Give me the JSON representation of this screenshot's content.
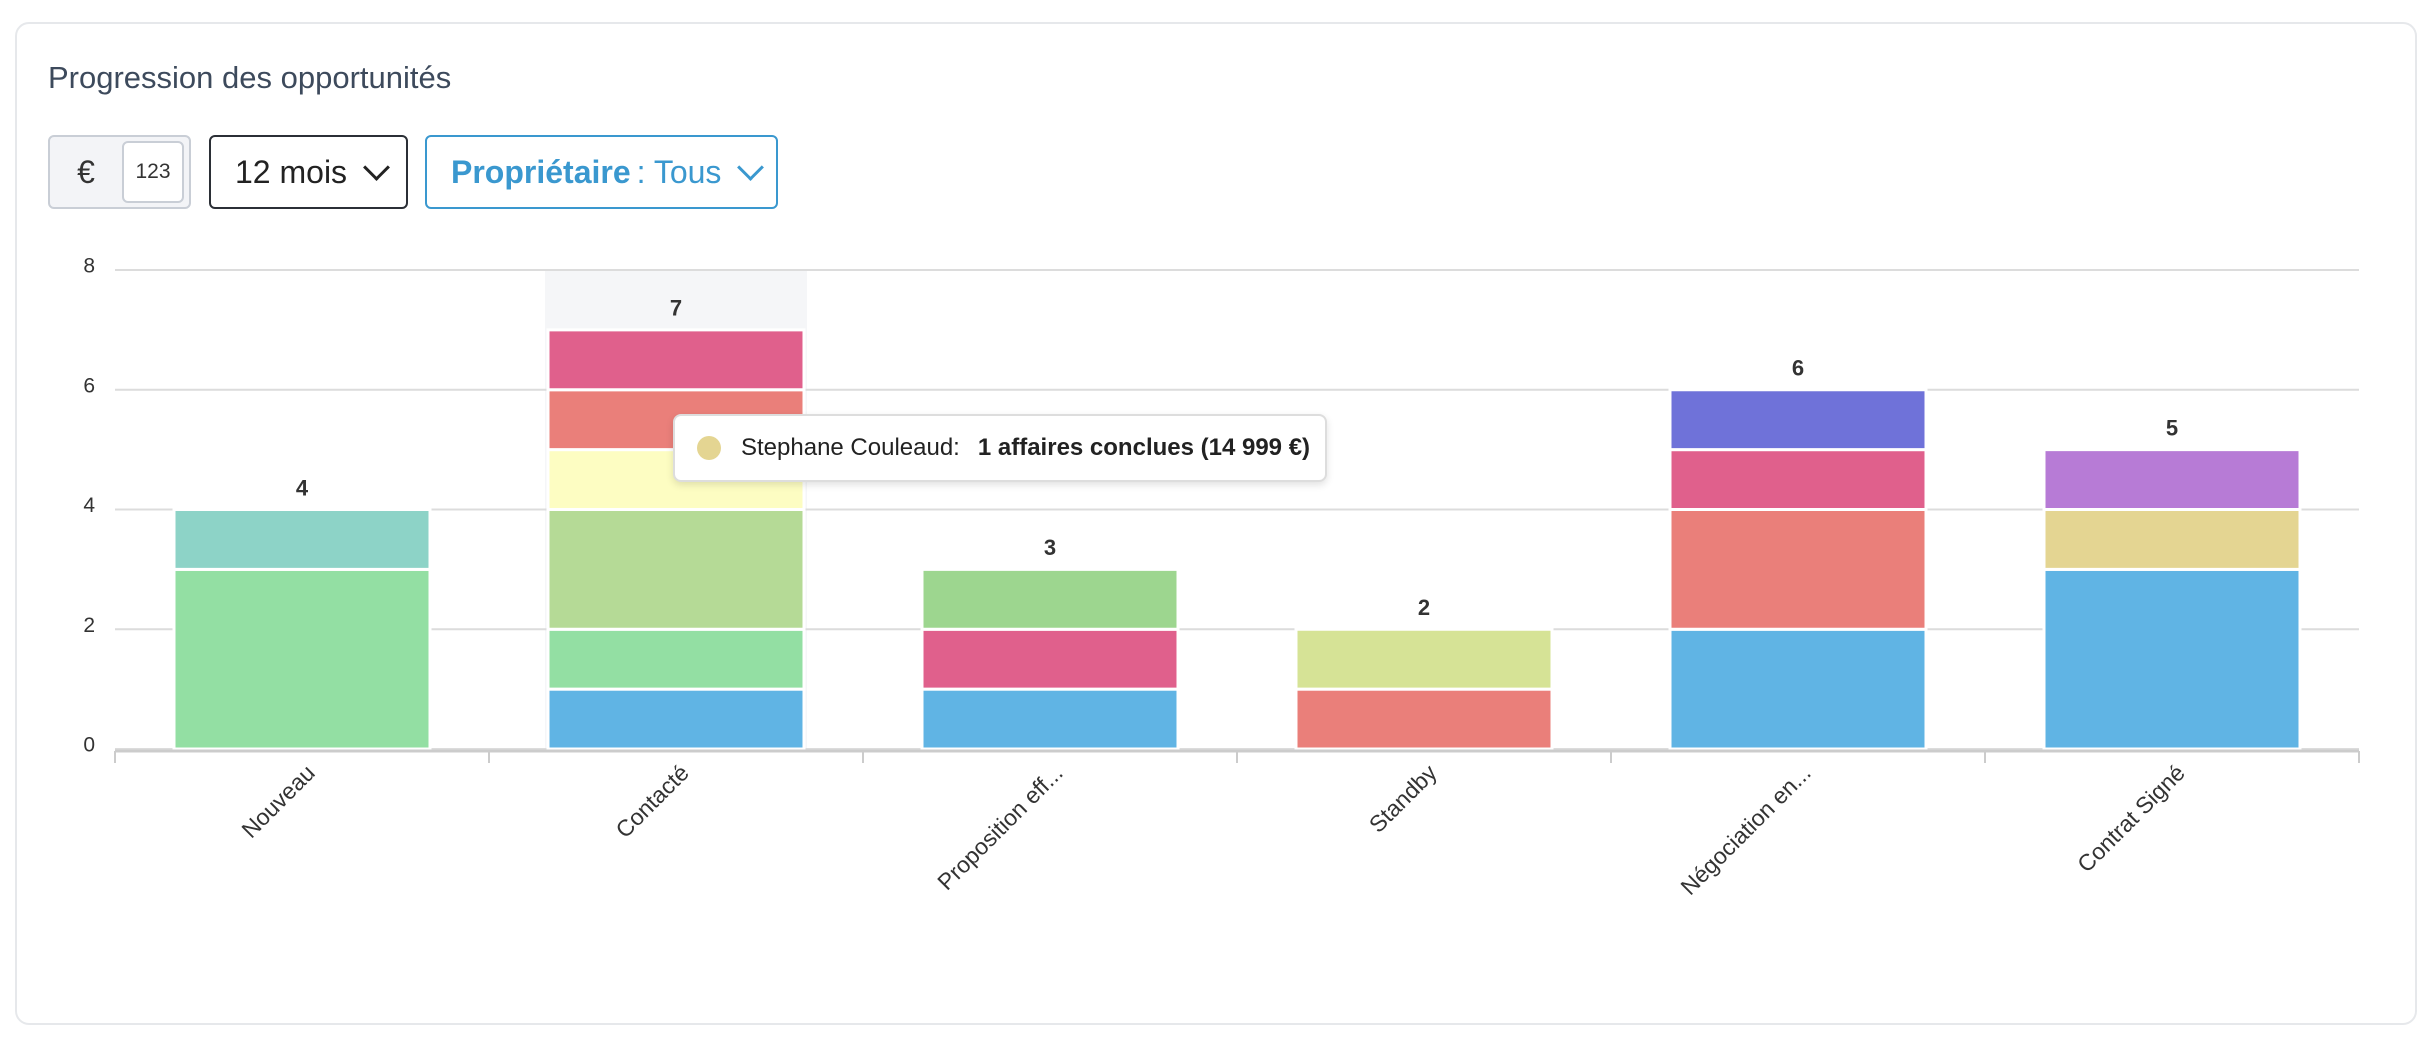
{
  "header": {
    "title": "Progression des opportunités"
  },
  "controls": {
    "currency": "€",
    "number": "123",
    "period": "12 mois",
    "owner_label": "Propriétaire",
    "owner_value": ": Tous"
  },
  "chart_data": {
    "type": "stacked-bar",
    "categories": [
      "Nouveau",
      "Contacté",
      "Proposition eff...",
      "Standby",
      "Négociation en...",
      "Contrat Signé"
    ],
    "series": [
      {
        "color": "#60b4e4",
        "values": [
          null,
          1,
          1,
          null,
          2,
          3
        ]
      },
      {
        "color": "#93dfa3",
        "values": [
          3,
          1,
          null,
          null,
          null,
          null
        ]
      },
      {
        "color": "#8dd3c7",
        "values": [
          1,
          null,
          null,
          null,
          null,
          null
        ]
      },
      {
        "color": "#b5da96",
        "values": [
          null,
          2,
          null,
          null,
          null,
          null
        ]
      },
      {
        "color": "#fdfdc2",
        "values": [
          null,
          1,
          null,
          null,
          null,
          null
        ]
      },
      {
        "color": "#ea7f7a",
        "values": [
          null,
          1,
          null,
          1,
          2,
          null
        ]
      },
      {
        "color": "#e0608c",
        "values": [
          null,
          1,
          1,
          null,
          1,
          null
        ]
      },
      {
        "color": "#9dd68f",
        "values": [
          null,
          null,
          1,
          null,
          null,
          null
        ]
      },
      {
        "color": "#d6e396",
        "values": [
          null,
          null,
          null,
          1,
          null,
          null
        ]
      },
      {
        "color": "#e4d592",
        "values": [
          null,
          null,
          null,
          null,
          null,
          1
        ]
      },
      {
        "color": "#b77bd6",
        "values": [
          null,
          null,
          null,
          null,
          null,
          1
        ]
      },
      {
        "color": "#6f72d9",
        "values": [
          null,
          null,
          null,
          null,
          1,
          null
        ]
      }
    ],
    "totals": [
      4,
      7,
      3,
      2,
      6,
      5
    ],
    "ylim": [
      0,
      8
    ],
    "yticks": [
      0,
      2,
      4,
      6,
      8
    ],
    "grid": true,
    "tooltip": {
      "name": "Stephane Couleaud:",
      "text": "1 affaires conclues (14 999 €)",
      "color": "#e4d592"
    }
  }
}
